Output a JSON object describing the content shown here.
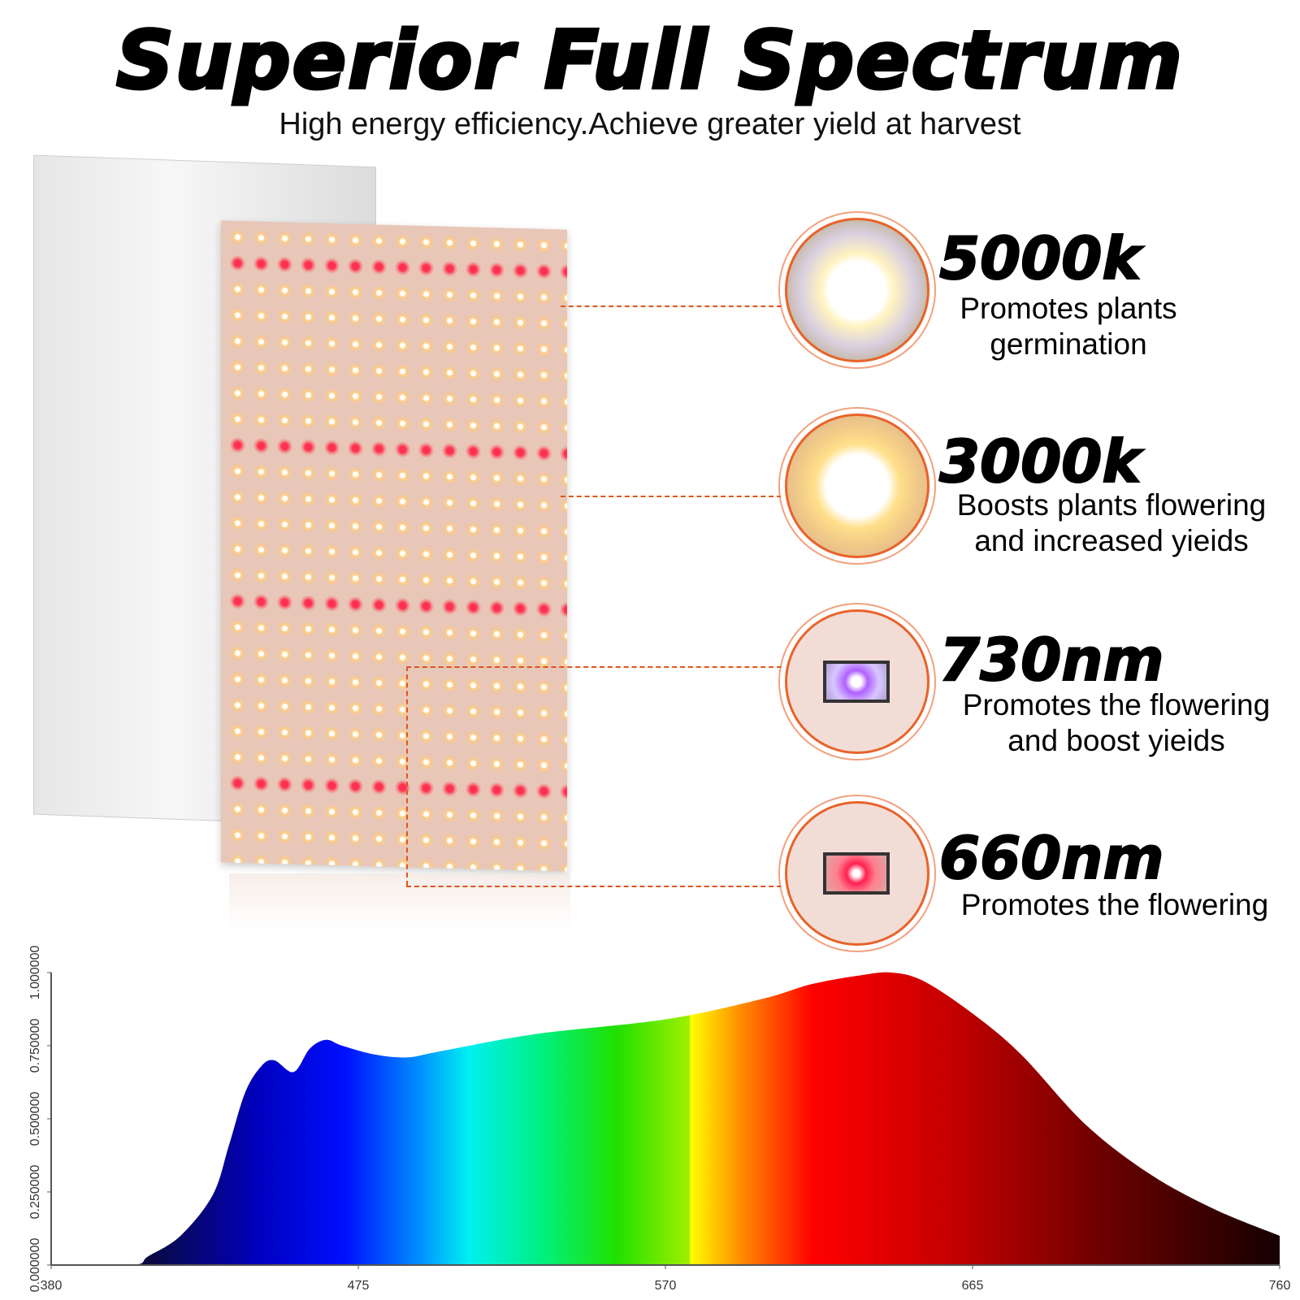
{
  "header": {
    "title": "Superior Full Spectrum",
    "subtitle": "High energy efficiency.Achieve greater yield at harvest"
  },
  "features": [
    {
      "heading": "5000k",
      "lines": [
        "Promotes plants",
        "germination"
      ],
      "icon": "white-led-icon"
    },
    {
      "heading": "3000k",
      "lines": [
        "Boosts plants flowering",
        "and increased yieids"
      ],
      "icon": "warm-led-icon"
    },
    {
      "heading": "730nm",
      "lines": [
        "Promotes the flowering",
        "and boost yieids"
      ],
      "icon": "far-red-led-chip-icon"
    },
    {
      "heading": "660nm",
      "lines": [
        "Promotes the flowering"
      ],
      "icon": "red-led-chip-icon"
    }
  ],
  "colors": {
    "accent": "#e0551b"
  },
  "chart_data": {
    "type": "area",
    "title": "",
    "xlabel": "",
    "ylabel": "",
    "xlim": [
      380,
      760
    ],
    "ylim": [
      0,
      1
    ],
    "x_ticks": [
      "380",
      "475",
      "570",
      "665",
      "760"
    ],
    "y_ticks": [
      "0.000000",
      "0.250000",
      "0.500000",
      "0.750000",
      "1.000000"
    ],
    "grid": false,
    "x": [
      380,
      405,
      410,
      420,
      430,
      435,
      440,
      445,
      449,
      455,
      460,
      465,
      470,
      480,
      490,
      500,
      530,
      570,
      600,
      615,
      630,
      640,
      650,
      665,
      680,
      700,
      720,
      740,
      760
    ],
    "y": [
      0,
      0,
      0.03,
      0.1,
      0.24,
      0.41,
      0.59,
      0.68,
      0.7,
      0.66,
      0.74,
      0.77,
      0.75,
      0.72,
      0.71,
      0.73,
      0.79,
      0.84,
      0.91,
      0.96,
      0.99,
      1.0,
      0.97,
      0.86,
      0.72,
      0.48,
      0.31,
      0.19,
      0.1
    ]
  }
}
